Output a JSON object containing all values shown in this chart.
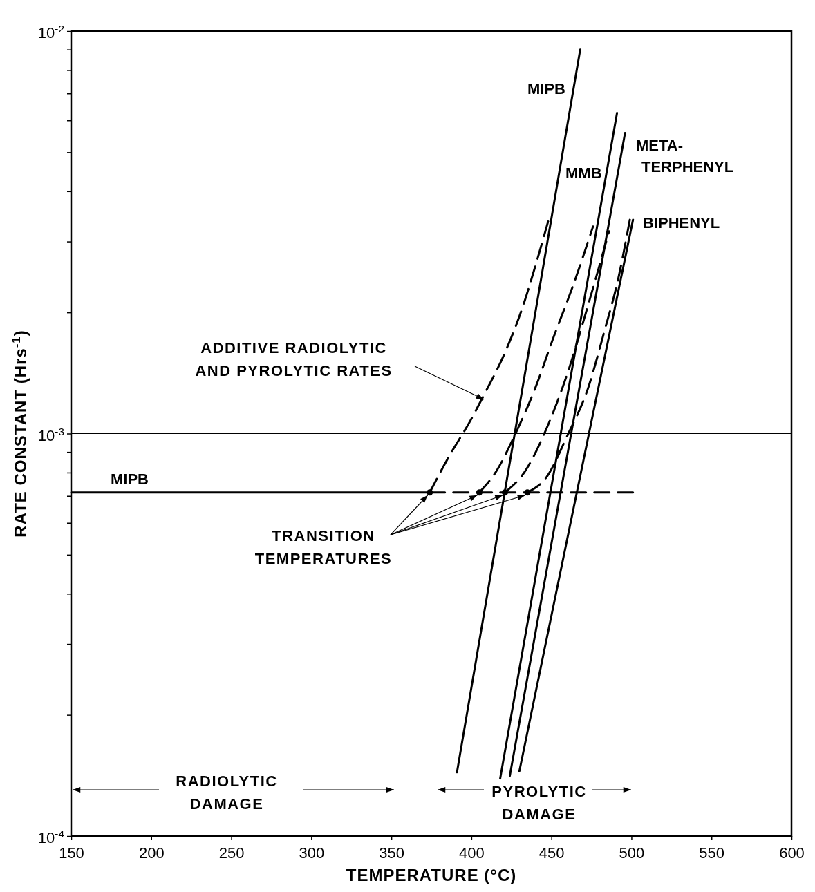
{
  "chart_data": {
    "type": "line",
    "xlabel": "TEMPERATURE (°C)",
    "ylabel": "RATE CONSTANT (Hrs$^{-1}$)",
    "log": "y",
    "grid": false,
    "xlim": [
      150,
      600
    ],
    "xticks": [
      150,
      200,
      250,
      300,
      350,
      400,
      450,
      500,
      550,
      600
    ],
    "ylim": [
      0.0001,
      0.01
    ],
    "yticks": [
      {
        "value": 0.0001,
        "label": "10$^{-4}$"
      },
      {
        "value": 0.0002,
        "label": null
      },
      {
        "value": 0.0003,
        "label": null
      },
      {
        "value": 0.0004,
        "label": null
      },
      {
        "value": 0.0005,
        "label": null
      },
      {
        "value": 0.0006,
        "label": null
      },
      {
        "value": 0.0007,
        "label": null
      },
      {
        "value": 0.0008,
        "label": null
      },
      {
        "value": 0.0009,
        "label": null
      },
      {
        "value": 0.001,
        "label": "10$^{-3}$"
      },
      {
        "value": 0.002,
        "label": null
      },
      {
        "value": 0.003,
        "label": null
      },
      {
        "value": 0.004,
        "label": null
      },
      {
        "value": 0.005,
        "label": null
      },
      {
        "value": 0.006,
        "label": null
      },
      {
        "value": 0.007,
        "label": null
      },
      {
        "value": 0.008,
        "label": null
      },
      {
        "value": 0.009,
        "label": null
      },
      {
        "value": 0.01,
        "label": "10$^{-2}$"
      }
    ],
    "ref_lines": [
      {
        "axis": "y",
        "value": 0.001,
        "color": "#000000"
      }
    ],
    "series": [
      {
        "name": "MIPB",
        "color": "#000000",
        "line_style": "solid",
        "x": [
          391,
          468
        ],
        "values": [
          0.000144,
          0.009
        ]
      },
      {
        "name": "MMB",
        "color": "#000000",
        "line_style": "solid",
        "x": [
          418,
          491
        ],
        "values": [
          0.000139,
          0.00626
        ]
      },
      {
        "name": "META-TERPHENYL",
        "color": "#000000",
        "line_style": "solid",
        "x": [
          424,
          496
        ],
        "values": [
          0.000141,
          0.00558
        ]
      },
      {
        "name": "BIPHENYL",
        "color": "#000000",
        "line_style": "solid",
        "x": [
          430,
          501
        ],
        "values": [
          0.000145,
          0.0034
        ]
      },
      {
        "name": "MIPB",
        "color": "#000000",
        "line_style": "solid",
        "x": [
          150,
          374
        ],
        "values": [
          0.000714,
          0.000714
        ]
      },
      {
        "color": "#000000",
        "line_style": "dashed",
        "x": [
          374,
          503
        ],
        "values": [
          0.000714,
          0.000714
        ]
      },
      {
        "color": "#000000",
        "line_style": "dashed",
        "x": [
          374,
          386,
          399,
          408,
          421,
          432,
          440,
          448
        ],
        "values": [
          0.000714,
          0.000877,
          0.00107,
          0.00125,
          0.00159,
          0.00206,
          0.00261,
          0.00337
        ]
      },
      {
        "color": "#000000",
        "line_style": "dashed",
        "x": [
          405,
          416,
          427,
          440,
          451,
          464,
          476
        ],
        "values": [
          0.000714,
          0.000811,
          0.000989,
          0.0013,
          0.00172,
          0.00236,
          0.00327
        ]
      },
      {
        "color": "#000000",
        "line_style": "dashed",
        "x": [
          421,
          434,
          447,
          460,
          473,
          486
        ],
        "values": [
          0.000714,
          0.000811,
          0.00103,
          0.00141,
          0.00209,
          0.00318
        ]
      },
      {
        "color": "#000000",
        "line_style": "dashed",
        "x": [
          435,
          447,
          460,
          473,
          483,
          492,
          499
        ],
        "values": [
          0.000714,
          0.00078,
          0.000989,
          0.0013,
          0.00179,
          0.00245,
          0.0034
        ]
      },
      {
        "type": "scatter",
        "color": "#000000",
        "marker": "circle",
        "x": [
          374,
          405,
          421,
          435
        ],
        "values": [
          0.000714,
          0.000714,
          0.000714,
          0.000714
        ]
      }
    ],
    "annotations": [
      "ADDITIVE RADIOLYTIC\nAND PYROLYTIC RATES",
      {
        "text": "TRANSITION\nTEMPERATURES",
        "x": 374,
        "y": 0.000714
      },
      "RADIOLYTIC\nDAMAGE",
      "PYROLYTIC\nDAMAGE"
    ]
  }
}
